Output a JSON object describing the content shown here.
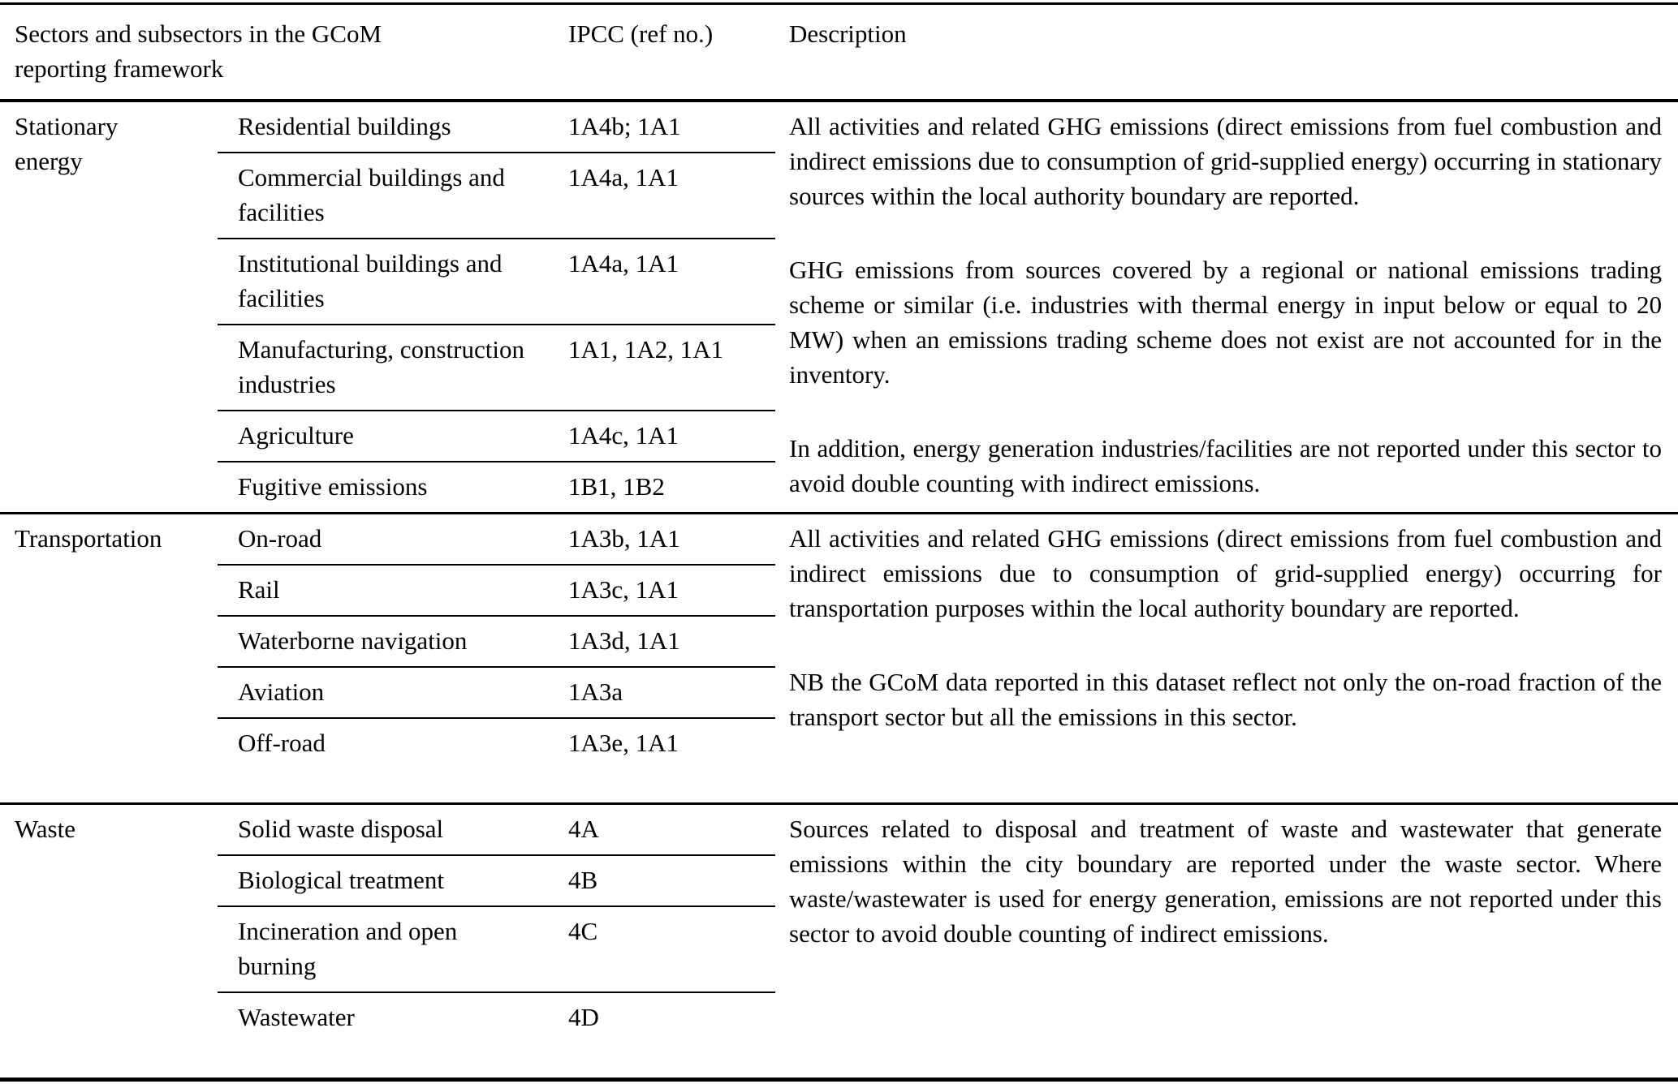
{
  "colors": {
    "text": "#000000",
    "background": "#ffffff",
    "rule": "#000000"
  },
  "table": {
    "header": {
      "col_sector": "Sectors and subsectors in the GCoM reporting framework",
      "col_ipcc": "IPCC (ref no.)",
      "col_description": "Description"
    },
    "sections": [
      {
        "sector": "Stationary energy",
        "rows": [
          {
            "subsector": "Residential buildings",
            "ipcc": "1A4b; 1A1"
          },
          {
            "subsector": "Commercial buildings and facilities",
            "ipcc": "1A4a, 1A1"
          },
          {
            "subsector": "Institutional buildings and facilities",
            "ipcc": "1A4a, 1A1"
          },
          {
            "subsector": "Manufacturing, construction industries",
            "ipcc": "1A1, 1A2, 1A1"
          },
          {
            "subsector": "Agriculture",
            "ipcc": "1A4c, 1A1"
          },
          {
            "subsector": "Fugitive emissions",
            "ipcc": "1B1, 1B2"
          }
        ],
        "description": [
          "All activities and related GHG emissions (direct emissions from fuel combustion and indirect emissions due to consumption of grid-supplied energy) occurring in stationary sources within the local authority boundary are reported.",
          "GHG emissions from sources covered by a regional or national emissions trading scheme or similar (i.e. industries with thermal energy in input below or equal to 20 MW) when an emissions trading scheme does not exist are not accounted for in the inventory.",
          "In addition, energy generation industries/facilities are not reported under this sector to avoid double counting with indirect emissions."
        ]
      },
      {
        "sector": "Transportation",
        "rows": [
          {
            "subsector": "On-road",
            "ipcc": "1A3b, 1A1"
          },
          {
            "subsector": "Rail",
            "ipcc": "1A3c, 1A1"
          },
          {
            "subsector": "Waterborne navigation",
            "ipcc": "1A3d, 1A1"
          },
          {
            "subsector": "Aviation",
            "ipcc": "1A3a"
          },
          {
            "subsector": "Off-road",
            "ipcc": "1A3e, 1A1"
          }
        ],
        "description": [
          "All activities and related GHG emissions (direct emissions from fuel combustion and indirect emissions due to consumption of grid-supplied energy) occurring for transportation purposes within the local authority boundary are reported.",
          "NB the GCoM data reported in this dataset reflect not only the on-road fraction of the transport sector but all the emissions in this sector."
        ]
      },
      {
        "sector": "Waste",
        "rows": [
          {
            "subsector": "Solid waste disposal",
            "ipcc": "4A"
          },
          {
            "subsector": "Biological treatment",
            "ipcc": "4B"
          },
          {
            "subsector": "Incineration and open burning",
            "ipcc": "4C"
          },
          {
            "subsector": "Wastewater",
            "ipcc": "4D"
          }
        ],
        "description": [
          "Sources related to disposal and treatment of waste and wastewater that generate emissions within the city boundary are reported under the waste sector. Where waste/wastewater is used for energy generation, emissions are not reported under this sector to avoid double counting of indirect emissions."
        ]
      }
    ]
  }
}
